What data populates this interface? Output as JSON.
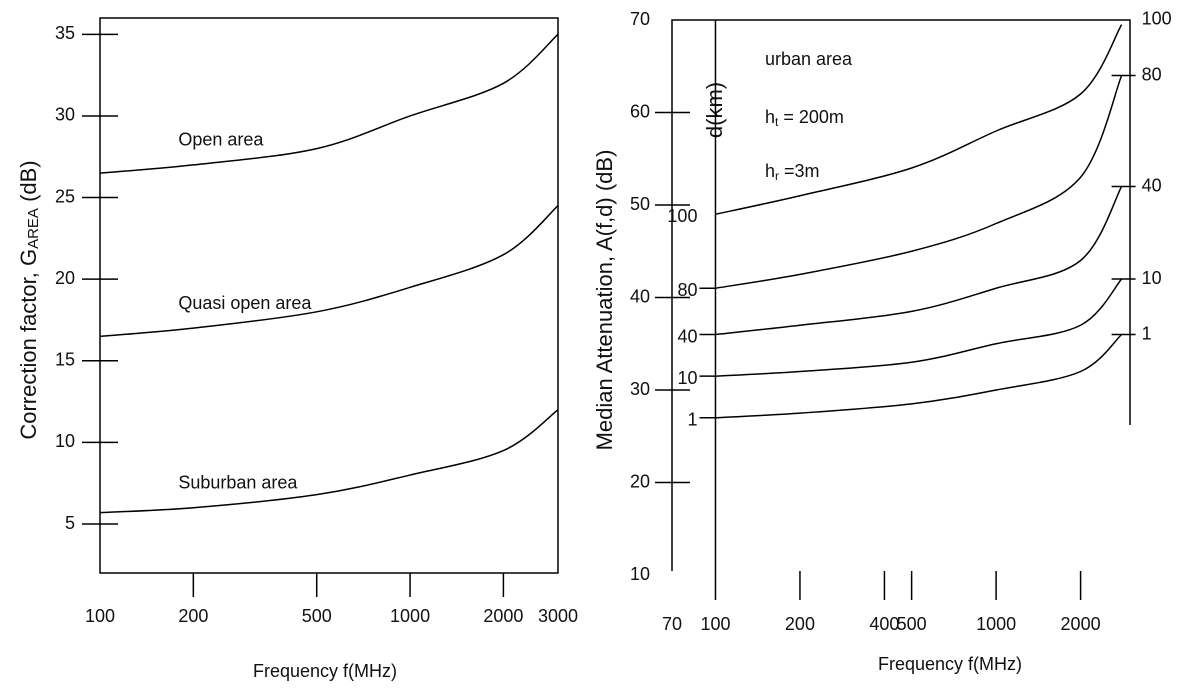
{
  "chart_data": [
    {
      "type": "line",
      "x_label": "Frequency f(MHz)",
      "y_label": {
        "text": "Correction factor, G",
        "sub": "AREA",
        "after": " (dB)"
      },
      "xscale": "log",
      "xlim": [
        100,
        3000
      ],
      "xticks": [
        100,
        200,
        500,
        1000,
        2000,
        3000
      ],
      "ylim": [
        2,
        36
      ],
      "yticks": [
        5,
        10,
        15,
        20,
        25,
        30,
        35
      ],
      "x": [
        100,
        200,
        500,
        1000,
        2000,
        3000
      ],
      "series": [
        {
          "name": "Open area",
          "color": "#000000",
          "values": [
            26.5,
            27,
            28,
            30,
            32,
            35
          ]
        },
        {
          "name": "Quasi open area",
          "color": "#000000",
          "values": [
            16.5,
            17,
            18,
            19.5,
            21.5,
            24.5
          ]
        },
        {
          "name": "Suburban area",
          "color": "#000000",
          "values": [
            5.7,
            6,
            6.8,
            8,
            9.5,
            12
          ]
        }
      ]
    },
    {
      "type": "line",
      "x_label": "Frequency f(MHz)",
      "y_label": {
        "text": "Median Attenuation, A(f,d) (dB)"
      },
      "legend_title": "d(km)",
      "annotations": [
        {
          "text": "urban area"
        },
        {
          "text": "h",
          "sub": "t",
          "after": " = 200m"
        },
        {
          "text": "h",
          "sub": "r",
          "after": " =3m"
        }
      ],
      "xscale": "log",
      "xlim": [
        70,
        3000
      ],
      "xticks": [
        70,
        100,
        200,
        400,
        500,
        1000,
        2000
      ],
      "ylim": [
        10,
        70
      ],
      "yticks": [
        10,
        20,
        30,
        40,
        50,
        60,
        70
      ],
      "x": [
        100,
        200,
        500,
        1000,
        2000,
        2800
      ],
      "series": [
        {
          "name": "100",
          "color": "#000000",
          "values": [
            49,
            51,
            54,
            58,
            62,
            69.5
          ]
        },
        {
          "name": "80",
          "color": "#000000",
          "values": [
            41,
            42.5,
            45,
            48,
            53,
            64
          ]
        },
        {
          "name": "40",
          "color": "#000000",
          "values": [
            36,
            37,
            38.5,
            41,
            44,
            52
          ]
        },
        {
          "name": "10",
          "color": "#000000",
          "values": [
            31.5,
            32,
            33,
            35,
            37,
            42
          ]
        },
        {
          "name": "1",
          "color": "#000000",
          "values": [
            27,
            27.5,
            28.5,
            30,
            32,
            36
          ]
        }
      ]
    }
  ]
}
